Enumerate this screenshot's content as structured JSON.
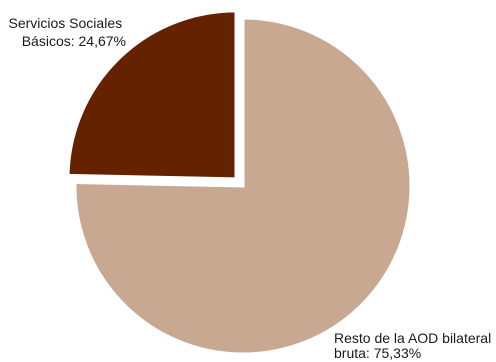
{
  "chart_data": {
    "type": "pie",
    "slices": [
      {
        "label_lines": [
          "Servicios Sociales",
          "Básicos: 24,67%"
        ],
        "category": "Servicios Sociales Básicos",
        "value": 24.67,
        "color": "#652200",
        "exploded": true
      },
      {
        "label_lines": [
          "Resto de la AOD bilateral",
          "bruta: 75,33%"
        ],
        "category": "Resto de la AOD bilateral bruta",
        "value": 75.33,
        "color": "#c9a891",
        "exploded": false
      }
    ]
  }
}
